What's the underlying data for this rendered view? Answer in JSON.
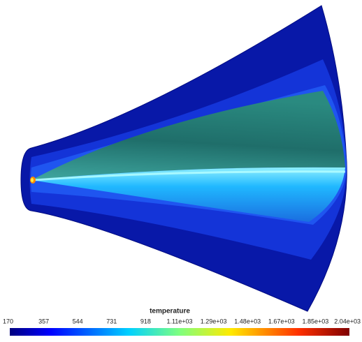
{
  "colorbar": {
    "title": "temperature",
    "ticks": [
      "170",
      "357",
      "544",
      "731",
      "918",
      "1.11e+03",
      "1.29e+03",
      "1.48e+03",
      "1.67e+03",
      "1.85e+03",
      "2.04e+03"
    ]
  }
}
